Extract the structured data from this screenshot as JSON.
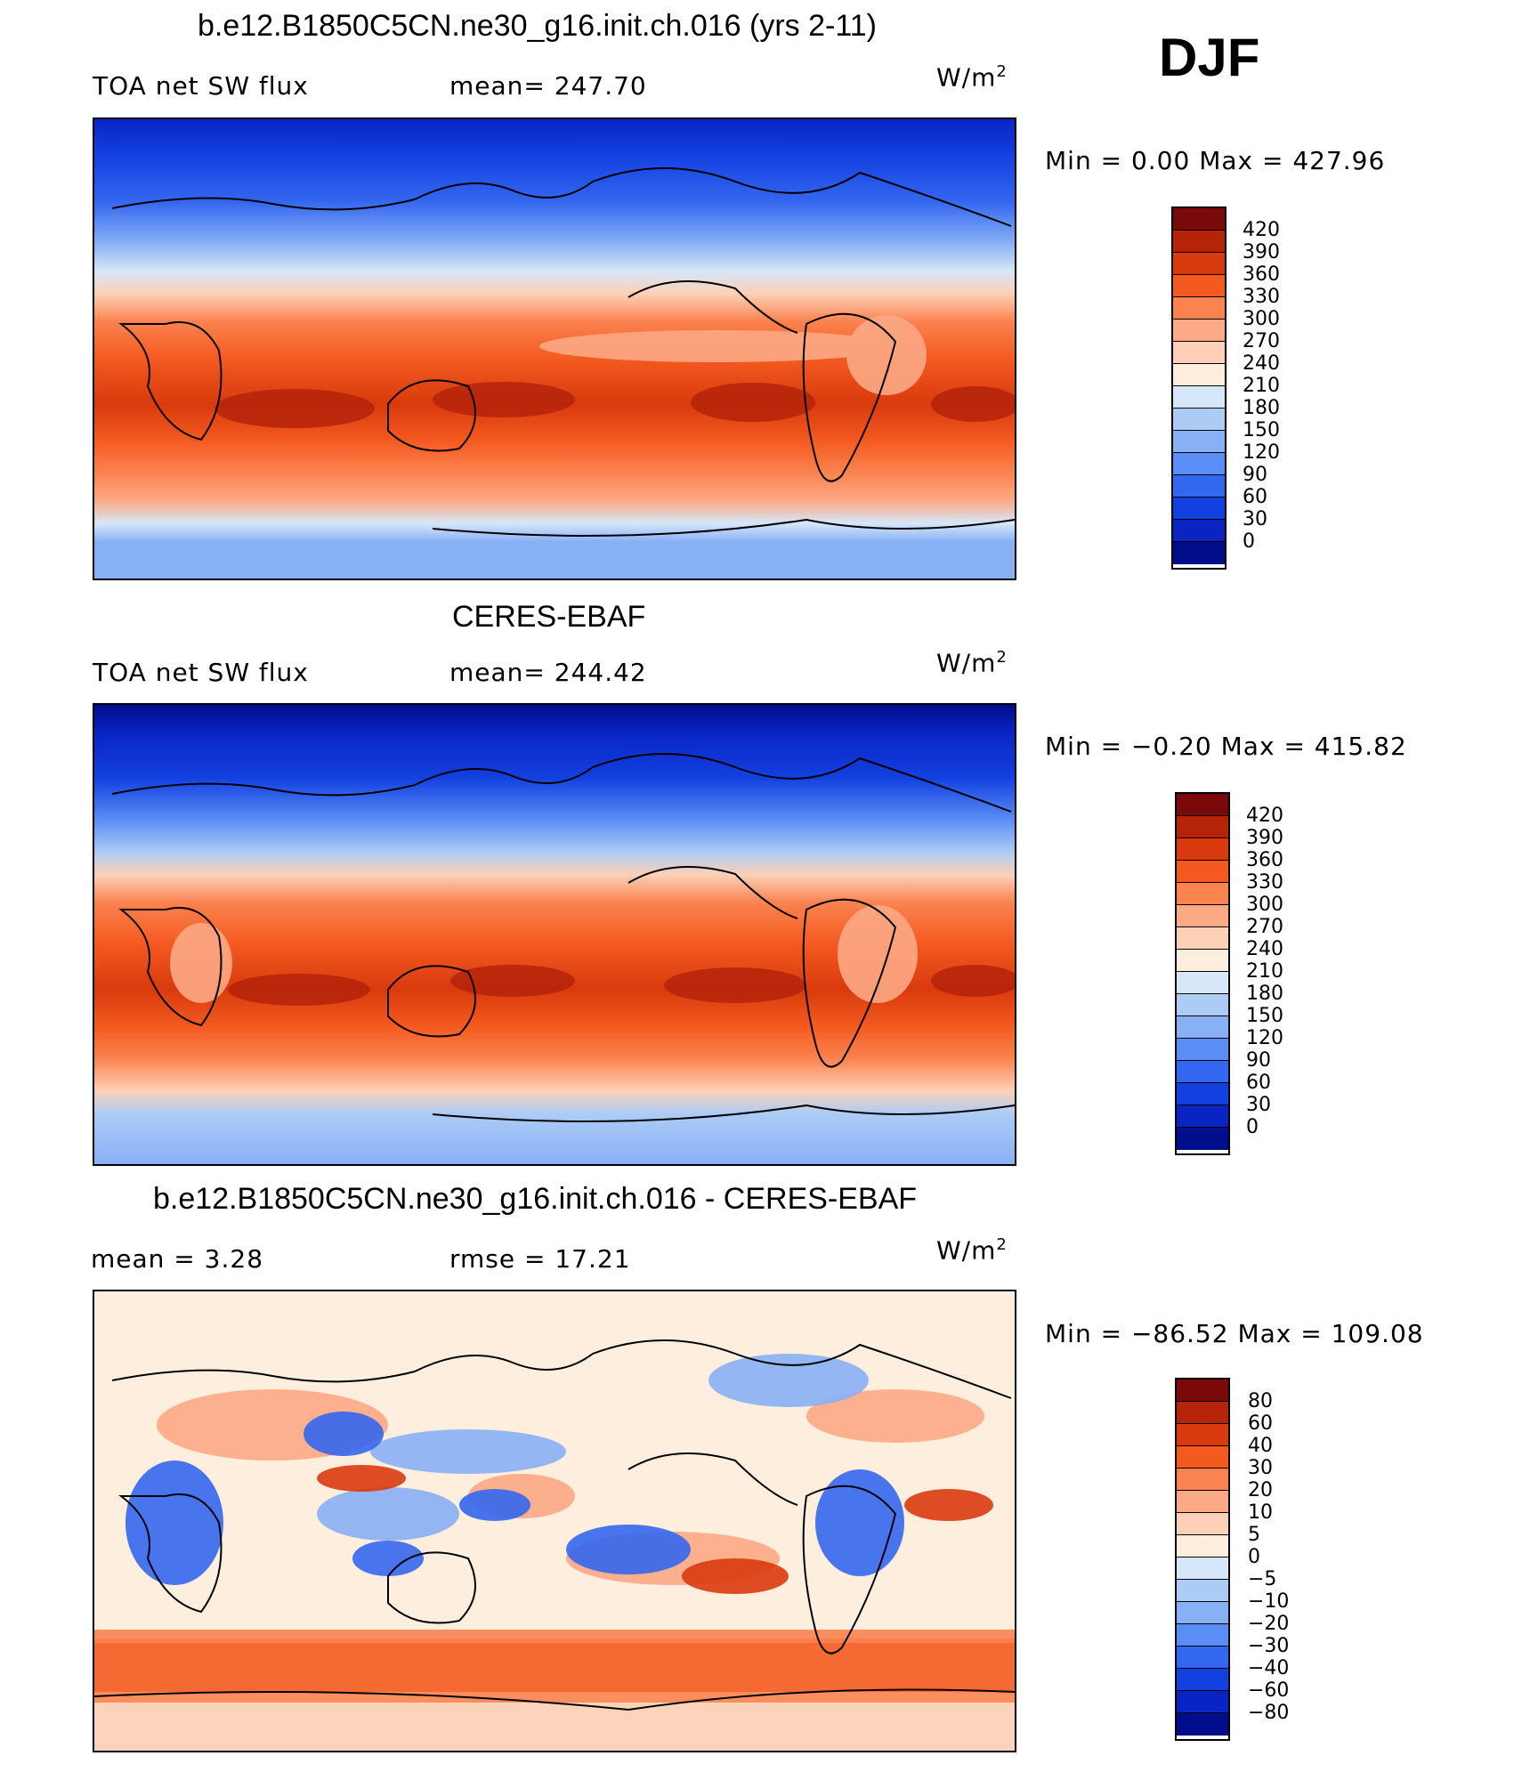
{
  "season": "DJF",
  "panels": [
    {
      "title": "b.e12.B1850C5CN.ne30_g16.init.ch.016 (yrs 2-11)",
      "left_label": "TOA net SW flux",
      "center_label": "mean=  247.70",
      "units": "W/m",
      "units_sup": "2",
      "minmax": "Min =    0.00 Max  =  427.96",
      "colorbar_labels": [
        "420",
        "390",
        "360",
        "330",
        "300",
        "270",
        "240",
        "210",
        "180",
        "150",
        "120",
        "90",
        "60",
        "30",
        "0"
      ]
    },
    {
      "title": "CERES-EBAF",
      "left_label": "TOA net SW flux",
      "center_label": "mean=  244.42",
      "units": "W/m",
      "units_sup": "2",
      "minmax": "Min =  −0.20 Max  =  415.82",
      "colorbar_labels": [
        "420",
        "390",
        "360",
        "330",
        "300",
        "270",
        "240",
        "210",
        "180",
        "150",
        "120",
        "90",
        "60",
        "30",
        "0"
      ]
    },
    {
      "title": "b.e12.B1850C5CN.ne30_g16.init.ch.016 - CERES-EBAF",
      "left_label": "mean =     3.28",
      "center_label": "rmse  =    17.21",
      "units": "W/m",
      "units_sup": "2",
      "minmax": "Min = −86.52 Max  =  109.08",
      "colorbar_labels": [
        "80",
        "60",
        "40",
        "30",
        "20",
        "10",
        "5",
        "0",
        "−5",
        "−10",
        "−20",
        "−30",
        "−40",
        "−60",
        "−80"
      ]
    }
  ],
  "colors": {
    "flux_scale": [
      "#7a0a0a",
      "#b52309",
      "#d93a0d",
      "#f45a20",
      "#fb8350",
      "#fca985",
      "#fdd0b7",
      "#fdeedd",
      "#d5e7f9",
      "#acccf6",
      "#88b0f5",
      "#5a8df5",
      "#3467ef",
      "#1341e0",
      "#0a24c4",
      "#000e8c"
    ],
    "diff_scale": [
      "#7a0a0a",
      "#b52309",
      "#d93a0d",
      "#f45a20",
      "#fb8350",
      "#fca985",
      "#fdd0b7",
      "#fdeedd",
      "#d5e7f9",
      "#acccf6",
      "#88b0f5",
      "#5a8df5",
      "#3467ef",
      "#1341e0",
      "#0a24c4",
      "#000e8c"
    ]
  }
}
